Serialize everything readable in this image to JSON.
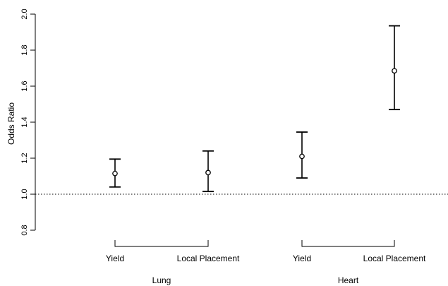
{
  "chart_data": {
    "type": "scatter",
    "ylabel": "Odds Ratio",
    "ylim": [
      0.8,
      2.0
    ],
    "yticks": [
      "0.8",
      "1.0",
      "1.2",
      "1.4",
      "1.6",
      "1.8",
      "2.0"
    ],
    "reference_line": 1.0,
    "categories": [
      "Yield",
      "Local Placement",
      "Yield",
      "Local Placement"
    ],
    "groups": [
      {
        "label": "Lung",
        "categories": [
          0,
          1
        ]
      },
      {
        "label": "Heart",
        "categories": [
          2,
          3
        ]
      }
    ],
    "points": [
      {
        "estimate": 1.115,
        "lower": 1.04,
        "upper": 1.195
      },
      {
        "estimate": 1.12,
        "lower": 1.015,
        "upper": 1.24
      },
      {
        "estimate": 1.21,
        "lower": 1.09,
        "upper": 1.345
      },
      {
        "estimate": 1.685,
        "lower": 1.47,
        "upper": 1.935
      }
    ],
    "grid": false,
    "legend": "none"
  }
}
